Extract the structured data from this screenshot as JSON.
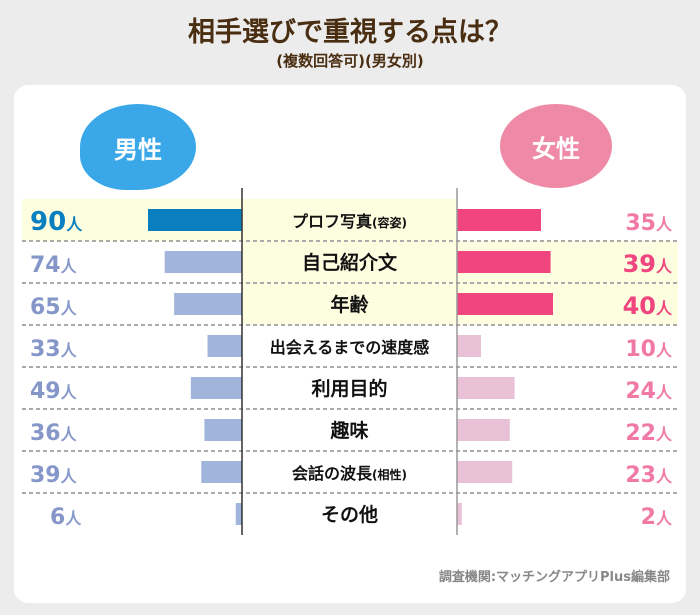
{
  "chart_data": {
    "type": "bar",
    "title": "相手選びで重視する点は？",
    "subtitle": "(複数回答可)(男女別)",
    "categories": [
      "プロフ写真(容姿)",
      "自己紹介文",
      "年齢",
      "出会えるまでの速度感",
      "利用目的",
      "趣味",
      "会話の波長(相性)",
      "その他"
    ],
    "series": [
      {
        "name": "男性",
        "values": [
          90,
          74,
          65,
          33,
          49,
          36,
          39,
          6
        ],
        "unit": "人"
      },
      {
        "name": "女性",
        "values": [
          35,
          39,
          40,
          10,
          24,
          22,
          23,
          2
        ],
        "unit": "人"
      }
    ],
    "source": "調査機関:マッチングアプリPlus編集部"
  },
  "colors": {
    "male_top": "#0a7fc0",
    "male": "#a0b4dc",
    "male_label": "#8597c9",
    "female_top": "#f0457f",
    "female": "#e9c1d6",
    "female_label": "#f07aa5",
    "highlight": "#fdfde0"
  }
}
